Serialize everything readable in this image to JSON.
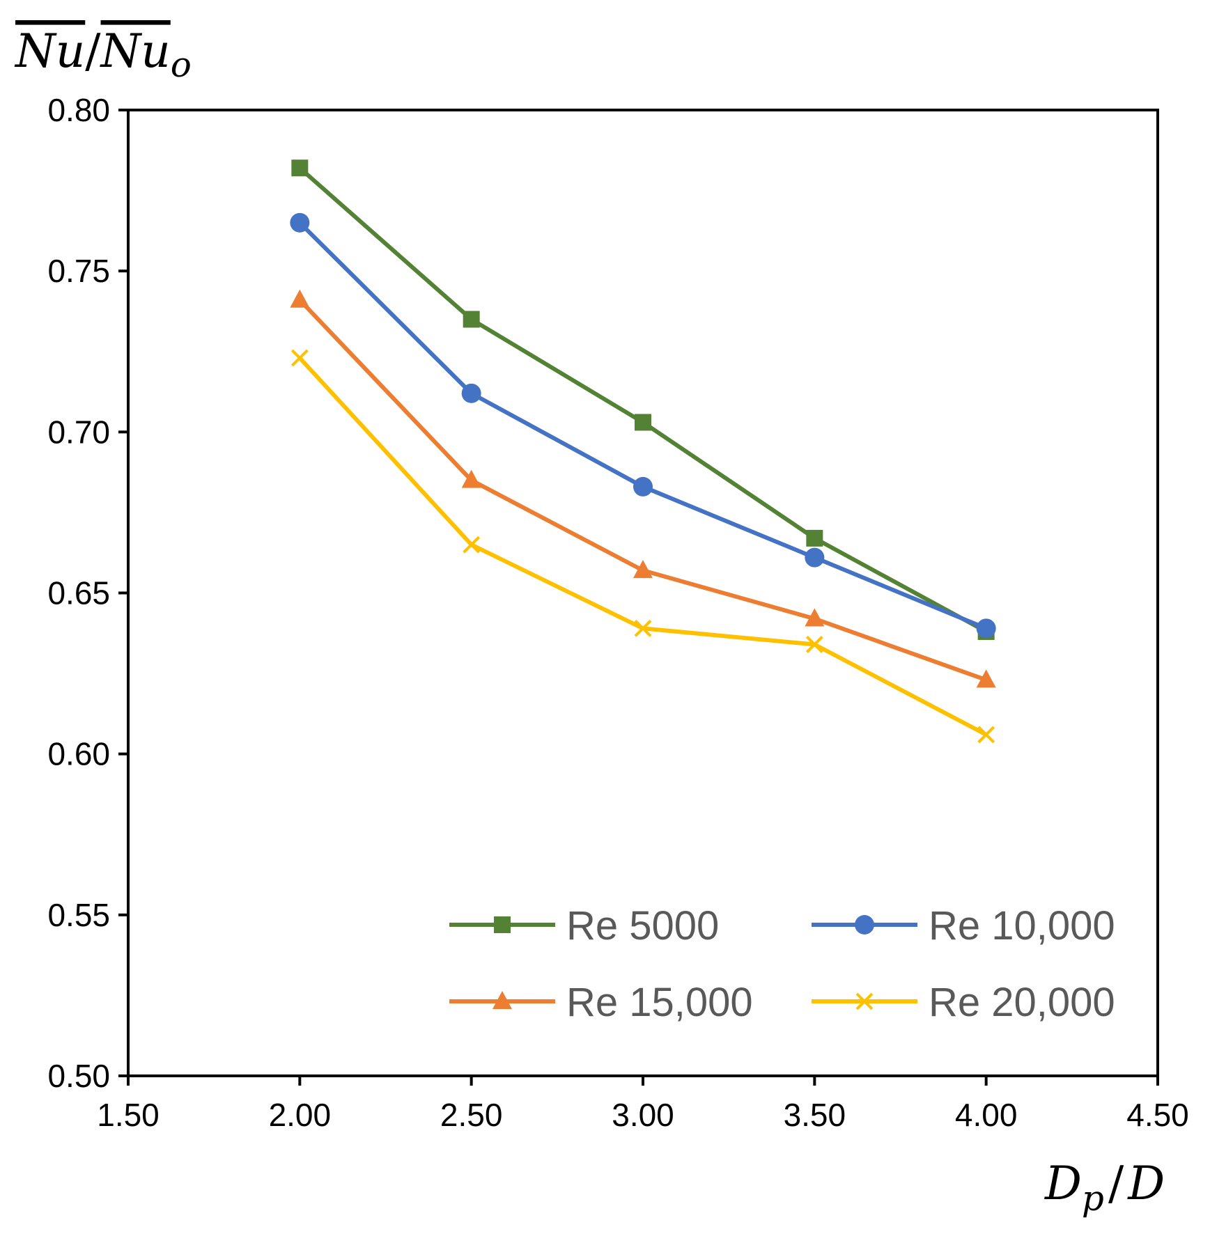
{
  "chart_data": {
    "type": "line",
    "ylabel": {
      "base": "Nu",
      "sep": "/",
      "base2": "Nu",
      "sub": "o"
    },
    "xlabel": {
      "base": "D",
      "sub": "p",
      "sep": "/",
      "base2": "D"
    },
    "xlim": [
      1.5,
      4.5
    ],
    "ylim": [
      0.5,
      0.8
    ],
    "x_ticks": [
      "1.50",
      "2.00",
      "2.50",
      "3.00",
      "3.50",
      "4.00",
      "4.50"
    ],
    "y_ticks": [
      "0.50",
      "0.55",
      "0.60",
      "0.65",
      "0.70",
      "0.75",
      "0.80"
    ],
    "grid": false,
    "legend_position": "bottom-right",
    "x": [
      2.0,
      2.5,
      3.0,
      3.5,
      4.0
    ],
    "series": [
      {
        "name": "Re 5000",
        "color": "#548235",
        "marker": "square",
        "values": [
          0.782,
          0.735,
          0.703,
          0.667,
          0.638
        ]
      },
      {
        "name": "Re 10,000",
        "color": "#4472C4",
        "marker": "circle",
        "values": [
          0.765,
          0.712,
          0.683,
          0.661,
          0.639
        ]
      },
      {
        "name": "Re 15,000",
        "color": "#ED7D31",
        "marker": "triangle",
        "values": [
          0.741,
          0.685,
          0.657,
          0.642,
          0.623
        ]
      },
      {
        "name": "Re 20,000",
        "color": "#FFC000",
        "marker": "x",
        "values": [
          0.723,
          0.665,
          0.639,
          0.634,
          0.606
        ]
      }
    ]
  }
}
